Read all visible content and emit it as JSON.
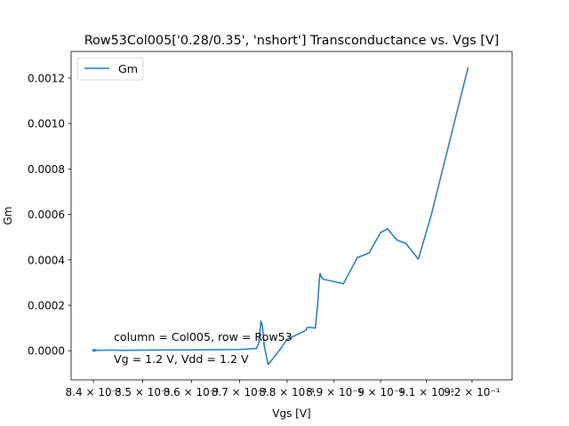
{
  "chart_data": {
    "type": "line",
    "title": "Row53Col005['0.28/0.35', 'nshort'] Transconductance vs. Vgs [V]",
    "xlabel": "Vgs [V]",
    "ylabel": "Gm",
    "x_scale": "log",
    "xlim": [
      0.8355,
      0.9289
    ],
    "ylim": [
      -0.000128,
      0.001317
    ],
    "x_ticks": [
      {
        "value": 0.84,
        "label": "8.4 × 10⁻¹"
      },
      {
        "value": 0.85,
        "label": "8.5 × 10⁻¹"
      },
      {
        "value": 0.86,
        "label": "8.6 × 10⁻¹"
      },
      {
        "value": 0.87,
        "label": "8.7 × 10⁻¹"
      },
      {
        "value": 0.88,
        "label": "8.8 × 10⁻¹"
      },
      {
        "value": 0.89,
        "label": "8.9 × 10⁻¹"
      },
      {
        "value": 0.9,
        "label": "9 × 10⁻¹"
      },
      {
        "value": 0.91,
        "label": "9.1 × 10⁻¹"
      },
      {
        "value": 0.92,
        "label": "9.2 × 10⁻¹"
      }
    ],
    "y_ticks": [
      {
        "value": 0.0,
        "label": "0.0000"
      },
      {
        "value": 0.0002,
        "label": "0.0002"
      },
      {
        "value": 0.0004,
        "label": "0.0004"
      },
      {
        "value": 0.0006,
        "label": "0.0006"
      },
      {
        "value": 0.0008,
        "label": "0.0008"
      },
      {
        "value": 0.001,
        "label": "0.0010"
      },
      {
        "value": 0.0012,
        "label": "0.0012"
      }
    ],
    "legend_placement": "top-left",
    "grid": false,
    "series": [
      {
        "name": "Gm",
        "color": "#1f77b4",
        "x": [
          0.8398,
          0.84,
          0.8402,
          0.8404,
          0.8406,
          0.841,
          0.843,
          0.846,
          0.85,
          0.855,
          0.86,
          0.865,
          0.87,
          0.8735,
          0.874,
          0.8745,
          0.8748,
          0.8752,
          0.8756,
          0.876,
          0.8768,
          0.8785,
          0.88,
          0.884,
          0.8842,
          0.885,
          0.8855,
          0.886,
          0.8865,
          0.8868,
          0.887,
          0.8873,
          0.8877,
          0.892,
          0.895,
          0.8975,
          0.9,
          0.9015,
          0.9035,
          0.9055,
          0.9082,
          0.911,
          0.9191
        ],
        "values": [
          4e-06,
          -2e-06,
          7e-06,
          -1e-06,
          3e-06,
          2e-06,
          3e-06,
          2e-06,
          3e-06,
          4e-06,
          4e-06,
          5e-06,
          6e-06,
          1e-05,
          3e-05,
          0.00013,
          0.00011,
          2e-05,
          -2e-05,
          -6e-05,
          -4e-05,
          5e-06,
          5e-05,
          9e-05,
          0.000102,
          0.000103,
          0.000101,
          0.0001,
          0.0002,
          0.0003,
          0.00034,
          0.000325,
          0.000315,
          0.000295,
          0.00041,
          0.00043,
          0.00052,
          0.000537,
          0.000488,
          0.000472,
          0.000403,
          0.000595,
          0.001245
        ]
      }
    ],
    "annotations": [
      "column = Col005, row = Row53",
      "Vg = 1.2 V, Vdd = 1.2 V"
    ]
  }
}
